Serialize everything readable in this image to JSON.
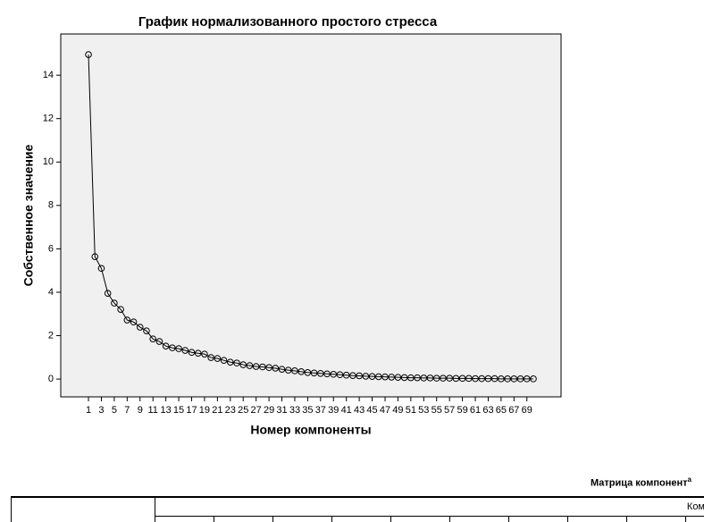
{
  "chart_data": {
    "type": "line",
    "title": "График нормализованного простого стресса",
    "x_label": "Номер компоненты",
    "y_label": "Собственное значение",
    "x": [
      1,
      2,
      3,
      4,
      5,
      6,
      7,
      8,
      9,
      10,
      11,
      12,
      13,
      14,
      15,
      16,
      17,
      18,
      19,
      20,
      21,
      22,
      23,
      24,
      25,
      26,
      27,
      28,
      29,
      30,
      31,
      32,
      33,
      34,
      35,
      36,
      37,
      38,
      39,
      40,
      41,
      42,
      43,
      44,
      45,
      46,
      47,
      48,
      49,
      50,
      51,
      52,
      53,
      54,
      55,
      56,
      57,
      58,
      59,
      60,
      61,
      62,
      63,
      64,
      65,
      66,
      67,
      68,
      69,
      70
    ],
    "values": [
      14.95,
      5.64,
      5.1,
      3.95,
      3.5,
      3.21,
      2.72,
      2.63,
      2.39,
      2.22,
      1.85,
      1.73,
      1.52,
      1.44,
      1.4,
      1.32,
      1.23,
      1.19,
      1.15,
      0.99,
      0.95,
      0.86,
      0.78,
      0.74,
      0.66,
      0.62,
      0.58,
      0.56,
      0.53,
      0.5,
      0.45,
      0.41,
      0.38,
      0.34,
      0.3,
      0.28,
      0.26,
      0.24,
      0.22,
      0.2,
      0.18,
      0.16,
      0.15,
      0.13,
      0.12,
      0.11,
      0.1,
      0.09,
      0.08,
      0.07,
      0.06,
      0.06,
      0.05,
      0.05,
      0.04,
      0.04,
      0.04,
      0.03,
      0.03,
      0.03,
      0.02,
      0.02,
      0.02,
      0.02,
      0.01,
      0.01,
      0.01,
      0.01,
      0.01,
      0.01
    ],
    "color": "#000000",
    "xlim": [
      -3.3,
      74.3
    ],
    "ylim": [
      -0.82,
      15.9
    ],
    "xticks": [
      1,
      3,
      5,
      7,
      9,
      11,
      13,
      15,
      17,
      19,
      21,
      23,
      25,
      27,
      29,
      31,
      33,
      35,
      37,
      39,
      41,
      43,
      45,
      47,
      49,
      51,
      53,
      55,
      57,
      59,
      61,
      63,
      65,
      67,
      69
    ],
    "yticks": [
      0,
      2,
      4,
      6,
      8,
      10,
      12,
      14
    ],
    "grid": false
  },
  "table": {
    "title": "Матрица компонент",
    "title_note": "a",
    "header": "Ком"
  }
}
